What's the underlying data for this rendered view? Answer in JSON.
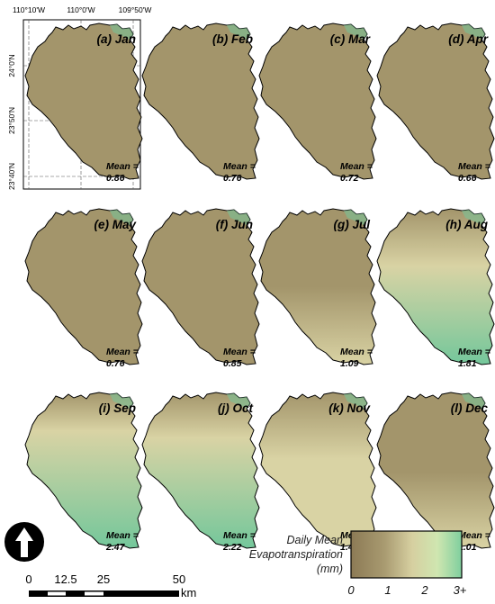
{
  "graticule": {
    "lon_labels": [
      "110°10'W",
      "110°0'W",
      "109°50'W"
    ],
    "lat_labels": [
      "24°0'N",
      "23°50'N",
      "23°40'N"
    ]
  },
  "panels": [
    {
      "label": "(a) Jan",
      "mean_label": "Mean =",
      "mean_value": "0.86",
      "value": 0.86
    },
    {
      "label": "(b) Feb",
      "mean_label": "Mean =",
      "mean_value": "0.76",
      "value": 0.76
    },
    {
      "label": "(c) Mar",
      "mean_label": "Mean =",
      "mean_value": "0.72",
      "value": 0.72
    },
    {
      "label": "(d) Apr",
      "mean_label": "Mean =",
      "mean_value": "0.66",
      "value": 0.66
    },
    {
      "label": "(e) May",
      "mean_label": "Mean =",
      "mean_value": "0.76",
      "value": 0.76
    },
    {
      "label": "(f) Jun",
      "mean_label": "Mean =",
      "mean_value": "0.85",
      "value": 0.85
    },
    {
      "label": "(g) Jul",
      "mean_label": "Mean =",
      "mean_value": "1.09",
      "value": 1.09
    },
    {
      "label": "(h) Aug",
      "mean_label": "Mean =",
      "mean_value": "1.81",
      "value": 1.81
    },
    {
      "label": "(i) Sep",
      "mean_label": "Mean =",
      "mean_value": "2.47",
      "value": 2.47
    },
    {
      "label": "(j) Oct",
      "mean_label": "Mean =",
      "mean_value": "2.22",
      "value": 2.22
    },
    {
      "label": "(k) Nov",
      "mean_label": "Mean =",
      "mean_value": "1.49",
      "value": 1.49
    },
    {
      "label": "(l) Dec",
      "mean_label": "Mean =",
      "mean_value": "1.01",
      "value": 1.01
    }
  ],
  "scale_bar": {
    "ticks": [
      "0",
      "12.5",
      "25",
      "50"
    ],
    "unit": "km"
  },
  "legend": {
    "title_lines": [
      "Daily Mean",
      "Evapotranspiration",
      "(mm)"
    ],
    "ticks": [
      "0",
      "1",
      "2",
      "3+"
    ],
    "colors": [
      "#8c7a55",
      "#a89a70",
      "#d6cfa0",
      "#cfe6b0",
      "#7fcf9e"
    ]
  },
  "colors": {
    "low": "#a3956b",
    "mid": "#d9d3a4",
    "high": "#74c79b",
    "outline": "#000000"
  }
}
